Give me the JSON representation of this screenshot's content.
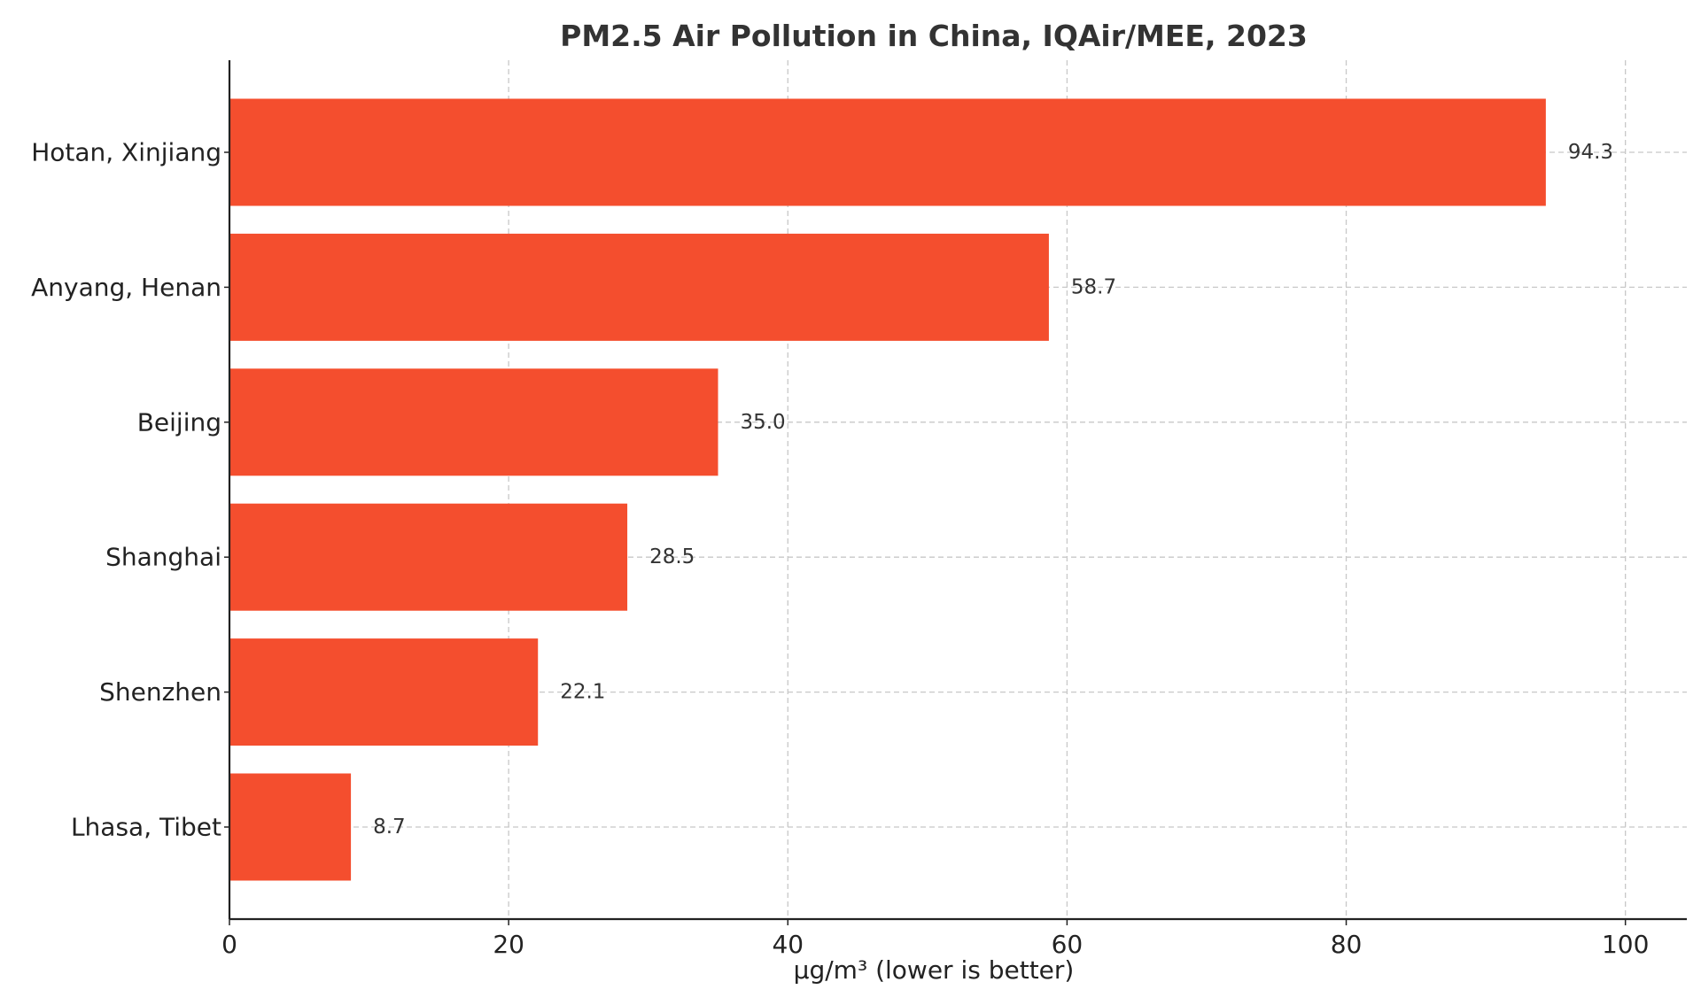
{
  "chart_data": {
    "type": "bar",
    "orientation": "horizontal",
    "title": "PM2.5 Air Pollution in China, IQAir/MEE, 2023",
    "xlabel": "µg/m³ (lower is better)",
    "ylabel": "",
    "categories": [
      "Hotan, Xinjiang",
      "Anyang, Henan",
      "Beijing",
      "Shanghai",
      "Shenzhen",
      "Lhasa, Tibet"
    ],
    "values": [
      94.3,
      58.7,
      35.0,
      28.5,
      22.1,
      8.7
    ],
    "value_labels": [
      "94.3",
      "58.7",
      "35.0",
      "28.5",
      "22.1",
      "8.7"
    ],
    "xlim": [
      0,
      104.4
    ],
    "xticks": [
      0,
      20,
      40,
      60,
      80,
      100
    ],
    "xtick_labels": [
      "0",
      "20",
      "40",
      "60",
      "80",
      "100"
    ],
    "grid": true,
    "bar_color": "#f44e2e"
  }
}
